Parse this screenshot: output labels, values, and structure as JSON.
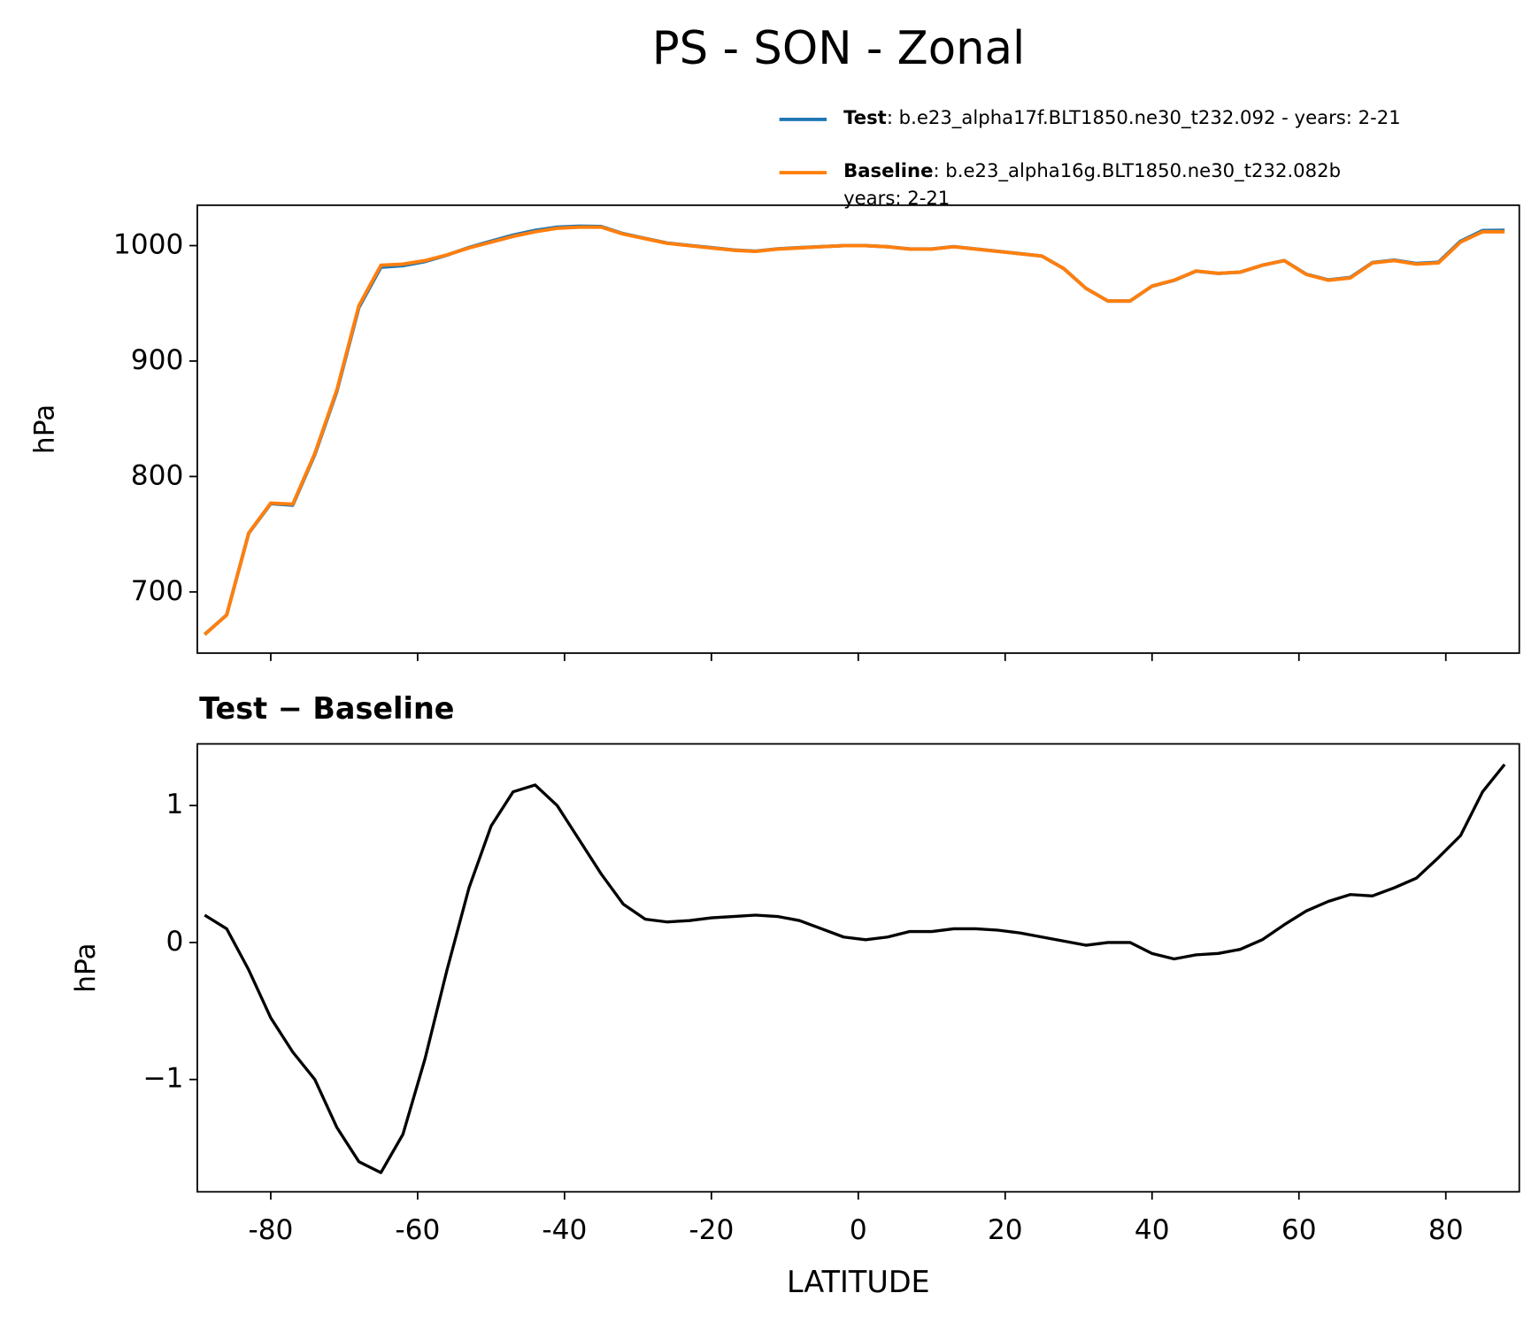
{
  "title": "PS - SON - Zonal",
  "chart_data": [
    {
      "type": "line",
      "ylabel": "hPa",
      "x": [
        -89,
        -86,
        -83,
        -80,
        -77,
        -74,
        -71,
        -68,
        -65,
        -62,
        -59,
        -56,
        -53,
        -50,
        -47,
        -44,
        -41,
        -38,
        -35,
        -32,
        -29,
        -26,
        -23,
        -20,
        -17,
        -14,
        -11,
        -8,
        -5,
        -2,
        1,
        4,
        7,
        10,
        13,
        16,
        19,
        22,
        25,
        28,
        31,
        34,
        37,
        40,
        43,
        46,
        49,
        52,
        55,
        58,
        61,
        64,
        67,
        70,
        73,
        76,
        79,
        82,
        85,
        88
      ],
      "series": [
        {
          "name": "Test",
          "label": [
            ": b.e23_alpha17f.BLT1850.ne30_t232.092 - years: 2-21"
          ],
          "color": "#1f77b4",
          "values": [
            663.2,
            680.1,
            750.8,
            776.5,
            775.2,
            819,
            873.7,
            946.4,
            981.3,
            982.6,
            986.2,
            991.8,
            998.4,
            1003.9,
            1009.1,
            1013.2,
            1016,
            1016.8,
            1016.5,
            1010.3,
            1006.2,
            1002.2,
            1000.2,
            998.2,
            996.2,
            995.2,
            997.2,
            998.2,
            999.1,
            1000,
            1000,
            999,
            997.1,
            997.1,
            999.1,
            997.1,
            995.1,
            993.1,
            991,
            980,
            963,
            952,
            952,
            964.9,
            969.9,
            977.9,
            975.9,
            977,
            983,
            987.1,
            975.2,
            970.3,
            972.4,
            985.3,
            987.4,
            984.5,
            985.6,
            1003.8,
            1013.1,
            1013.3
          ]
        },
        {
          "name": "Baseline",
          "label": [
            ": b.e23_alpha16g.BLT1850.ne30_t232.082b",
            "years: 2-21"
          ],
          "color": "#ff7f0e",
          "values": [
            663,
            680,
            751,
            777,
            776,
            820,
            875,
            948,
            983,
            984,
            987,
            992,
            998,
            1003,
            1008,
            1012,
            1015,
            1016,
            1016,
            1010,
            1006,
            1002,
            1000,
            998,
            996,
            995,
            997,
            998,
            999,
            1000,
            1000,
            999,
            997,
            997,
            999,
            997,
            995,
            993,
            991,
            980,
            963,
            952,
            952,
            965,
            970,
            978,
            976,
            977,
            983,
            987,
            975,
            970,
            972,
            985,
            987,
            984,
            985,
            1003,
            1012,
            1012
          ]
        }
      ],
      "xlim": [
        -90,
        90
      ],
      "xticks": [
        -80,
        -60,
        -40,
        -20,
        0,
        20,
        40,
        60,
        80
      ],
      "ylim": [
        647,
        1035
      ],
      "yticks": [
        700,
        800,
        900,
        1000
      ]
    },
    {
      "type": "line",
      "title": "Test − Baseline",
      "ylabel": "hPa",
      "xlabel": "LATITUDE",
      "x": [
        -89,
        -86,
        -83,
        -80,
        -77,
        -74,
        -71,
        -68,
        -65,
        -62,
        -59,
        -56,
        -53,
        -50,
        -47,
        -44,
        -41,
        -38,
        -35,
        -32,
        -29,
        -26,
        -23,
        -20,
        -17,
        -14,
        -11,
        -8,
        -5,
        -2,
        1,
        4,
        7,
        10,
        13,
        16,
        19,
        22,
        25,
        28,
        31,
        34,
        37,
        40,
        43,
        46,
        49,
        52,
        55,
        58,
        61,
        64,
        67,
        70,
        73,
        76,
        79,
        82,
        85,
        88
      ],
      "series": [
        {
          "color": "#000000",
          "values": [
            0.2,
            0.1,
            -0.2,
            -0.55,
            -0.8,
            -1.0,
            -1.35,
            -1.6,
            -1.68,
            -1.4,
            -0.85,
            -0.2,
            0.4,
            0.85,
            1.1,
            1.15,
            1.0,
            0.75,
            0.5,
            0.28,
            0.17,
            0.15,
            0.16,
            0.18,
            0.19,
            0.2,
            0.19,
            0.16,
            0.1,
            0.04,
            0.02,
            0.04,
            0.08,
            0.08,
            0.1,
            0.1,
            0.09,
            0.07,
            0.04,
            0.01,
            -0.02,
            0.0,
            0.0,
            -0.08,
            -0.12,
            -0.09,
            -0.08,
            -0.05,
            0.02,
            0.13,
            0.23,
            0.3,
            0.35,
            0.34,
            0.4,
            0.47,
            0.62,
            0.78,
            1.1,
            1.3
          ]
        }
      ],
      "xlim": [
        -90,
        90
      ],
      "xticks": [
        -80,
        -60,
        -40,
        -20,
        0,
        20,
        40,
        60,
        80
      ],
      "ylim": [
        -1.82,
        1.45
      ],
      "yticks": [
        {
          "value": -1,
          "label": "−1"
        },
        0,
        1
      ]
    }
  ]
}
